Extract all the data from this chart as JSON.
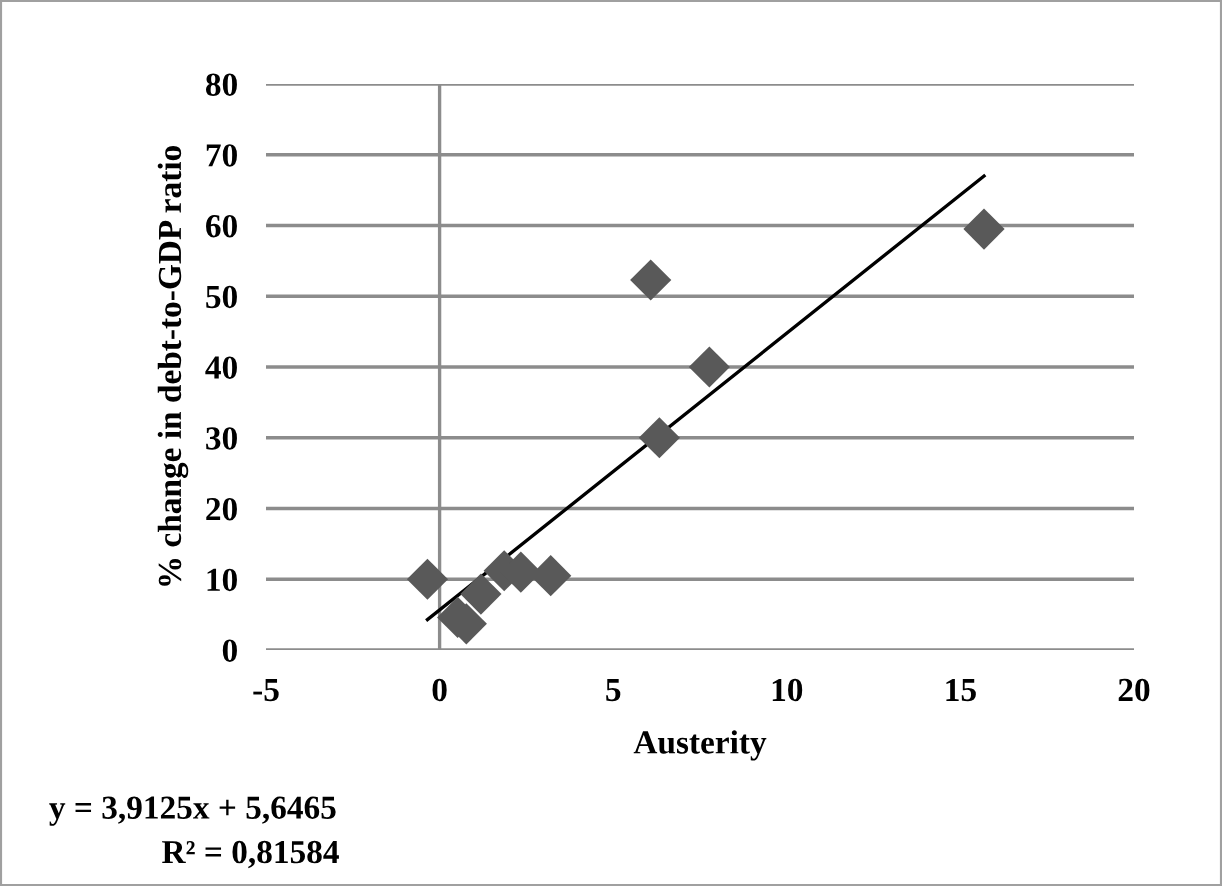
{
  "chart_data": {
    "type": "scatter",
    "xlabel": "Austerity",
    "ylabel": "% change in debt-to-GDP ratio",
    "series": [
      {
        "color": "#595959",
        "marker": "diamond",
        "x": [
          -0.35,
          0.52,
          0.77,
          1.19,
          1.86,
          2.34,
          3.2,
          6.08,
          6.33,
          7.77,
          15.68
        ],
        "values": [
          10.0,
          4.6,
          3.7,
          7.9,
          11.2,
          11.0,
          10.5,
          52.3,
          30.0,
          40.0,
          59.5
        ]
      },
      {
        "type": "line",
        "color": "#000000",
        "marker": "none",
        "x": [
          -0.35,
          15.68
        ],
        "values": [
          4.3,
          67
        ]
      }
    ],
    "xlim": [
      -5,
      20
    ],
    "xticks": [
      -5,
      0,
      5,
      10,
      15,
      20
    ],
    "ylim": [
      0,
      80
    ],
    "yticks": [
      0,
      10,
      20,
      30,
      40,
      50,
      60,
      70,
      80
    ],
    "grid": "y",
    "legend": false,
    "ref_lines": [
      {
        "axis": "x",
        "value": 0,
        "color": "#8c8c8c"
      }
    ],
    "annotations": [
      "y = 3,9125x + 5,6465",
      "R² = 0,81584"
    ]
  }
}
